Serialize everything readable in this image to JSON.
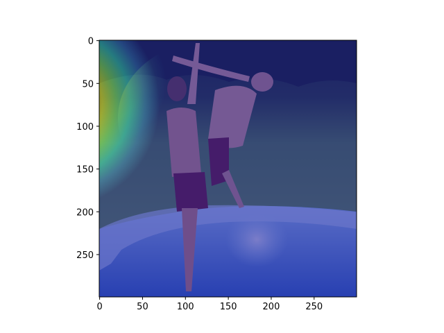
{
  "figure": {
    "description_type": "heatmap-overlay",
    "colormap": "jet",
    "overlay_alpha": 0.5,
    "background_color": "#ffffff",
    "axes": {
      "x_range": [
        0,
        299
      ],
      "y_range": [
        0,
        299
      ],
      "y_inverted": true,
      "x_ticks": [
        "0",
        "50",
        "100",
        "150",
        "200",
        "250"
      ],
      "y_ticks": [
        "0",
        "50",
        "100",
        "150",
        "200",
        "250"
      ],
      "x_tick_values": [
        0,
        50,
        100,
        150,
        200,
        250
      ],
      "y_tick_values": [
        0,
        50,
        100,
        150,
        200,
        250
      ]
    },
    "scene_colors": {
      "grass": "#5b8a3a",
      "trees_dark": "#1c2a18",
      "pool_blue": "#3a7fd4",
      "water_splash": "#bfe6ff",
      "skin": "#e09a78",
      "shorts": "#7a1f2a"
    }
  }
}
